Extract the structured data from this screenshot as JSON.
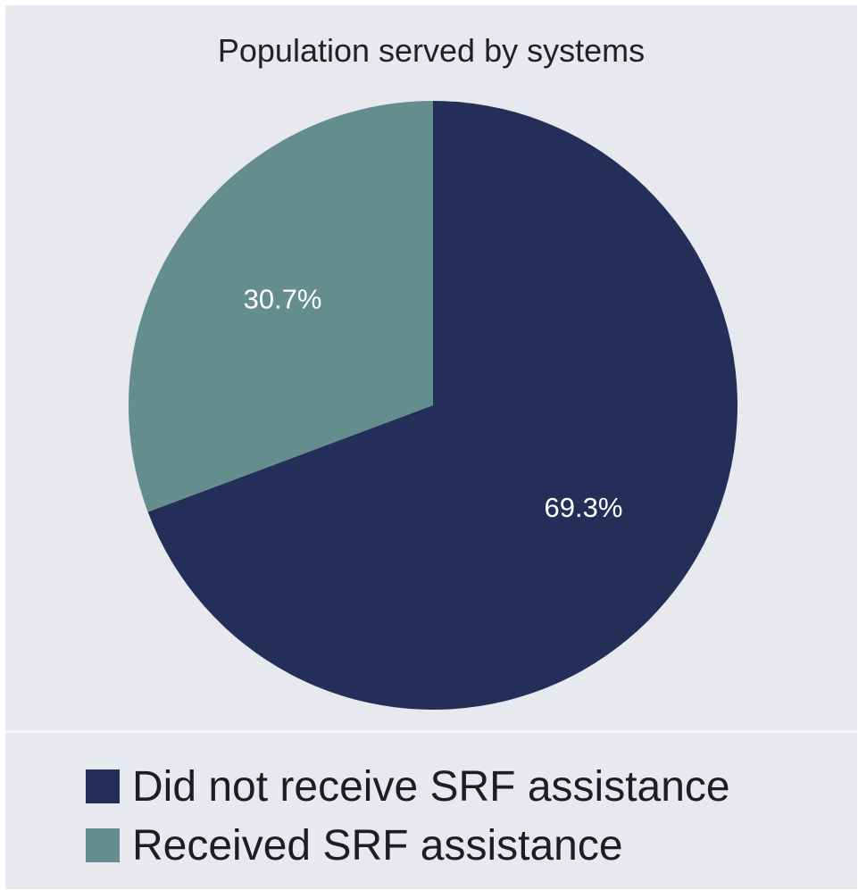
{
  "chart_data": {
    "type": "pie",
    "title": "Population served by systems",
    "slices": [
      {
        "label": "Did not receive SRF assistance",
        "value": 69.3,
        "display": "69.3%",
        "color": "#232f58"
      },
      {
        "label": "Received SRF assistance",
        "value": 30.7,
        "display": "30.7%",
        "color": "#648e8e"
      }
    ],
    "start_angle_deg": 0,
    "direction": "clockwise",
    "legend_position": "bottom"
  }
}
